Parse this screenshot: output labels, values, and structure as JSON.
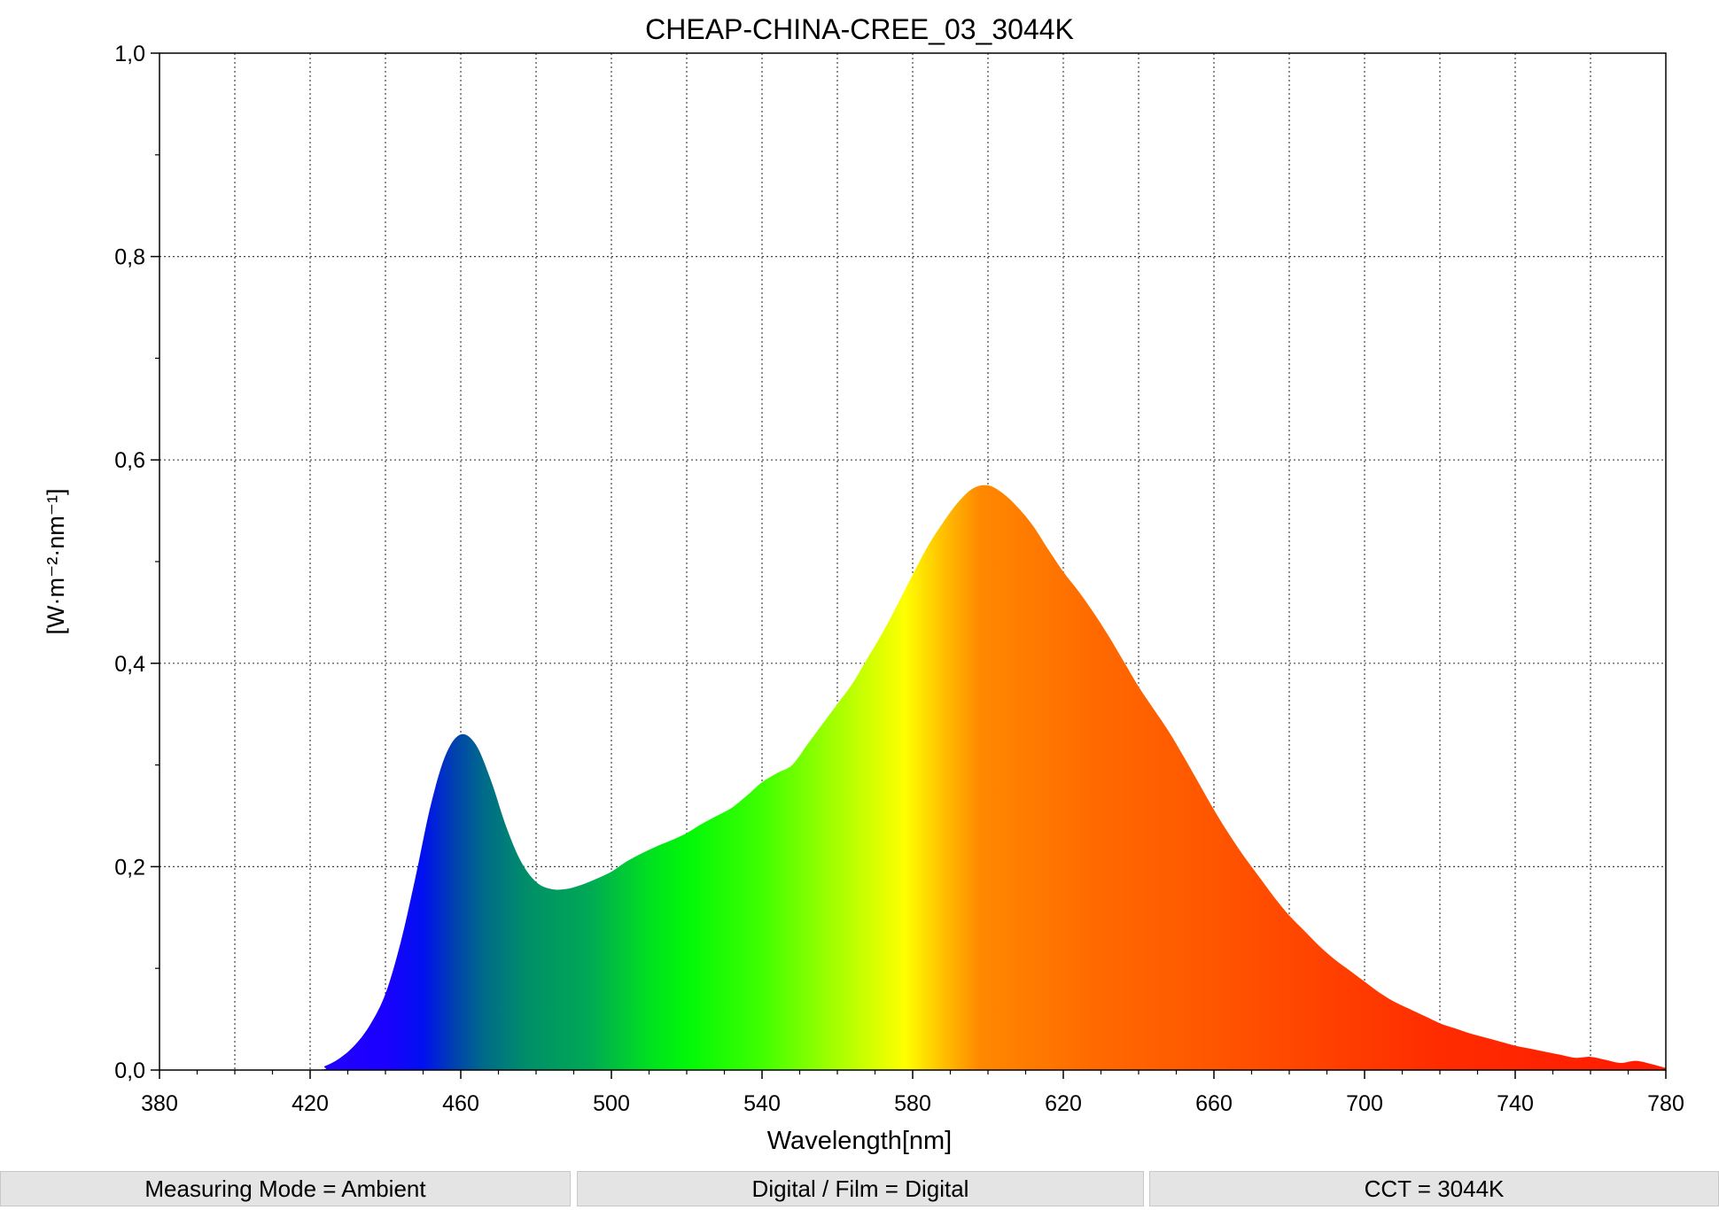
{
  "chart_data": {
    "type": "area",
    "title": "CHEAP-CHINA-CREE_03_3044K",
    "xlabel": "Wavelength[nm]",
    "ylabel": "[W·m⁻²·nm⁻¹]",
    "xlim": [
      380,
      780
    ],
    "ylim": [
      0.0,
      1.0
    ],
    "x_ticks": [
      "380",
      "420",
      "460",
      "500",
      "540",
      "580",
      "620",
      "660",
      "700",
      "740",
      "780"
    ],
    "y_ticks": [
      "0,0",
      "0,2",
      "0,4",
      "0,6",
      "0,8",
      "1,0"
    ],
    "grid": true,
    "fill": "visible-spectrum gradient",
    "x": [
      380,
      420,
      424,
      428,
      432,
      436,
      440,
      444,
      448,
      452,
      456,
      460,
      464,
      468,
      472,
      476,
      480,
      484,
      488,
      492,
      496,
      500,
      504,
      508,
      512,
      516,
      520,
      524,
      528,
      532,
      536,
      540,
      544,
      548,
      552,
      556,
      560,
      564,
      568,
      572,
      576,
      580,
      584,
      588,
      592,
      596,
      600,
      604,
      608,
      612,
      616,
      620,
      624,
      628,
      632,
      636,
      640,
      644,
      648,
      652,
      656,
      660,
      664,
      668,
      672,
      676,
      680,
      684,
      688,
      692,
      696,
      700,
      704,
      708,
      712,
      716,
      720,
      724,
      728,
      732,
      736,
      740,
      744,
      748,
      752,
      756,
      760,
      764,
      768,
      772,
      776,
      780
    ],
    "y": [
      0.0,
      0.0,
      0.004,
      0.012,
      0.025,
      0.045,
      0.075,
      0.125,
      0.19,
      0.26,
      0.31,
      0.33,
      0.32,
      0.285,
      0.24,
      0.205,
      0.185,
      0.178,
      0.178,
      0.182,
      0.188,
      0.195,
      0.205,
      0.213,
      0.22,
      0.226,
      0.233,
      0.242,
      0.25,
      0.258,
      0.27,
      0.283,
      0.292,
      0.3,
      0.32,
      0.34,
      0.36,
      0.38,
      0.405,
      0.43,
      0.458,
      0.487,
      0.515,
      0.538,
      0.558,
      0.572,
      0.575,
      0.567,
      0.553,
      0.535,
      0.512,
      0.49,
      0.471,
      0.45,
      0.427,
      0.402,
      0.377,
      0.355,
      0.333,
      0.308,
      0.282,
      0.256,
      0.232,
      0.21,
      0.19,
      0.17,
      0.152,
      0.137,
      0.122,
      0.109,
      0.098,
      0.087,
      0.076,
      0.067,
      0.06,
      0.053,
      0.046,
      0.041,
      0.036,
      0.032,
      0.028,
      0.024,
      0.021,
      0.018,
      0.015,
      0.012,
      0.013,
      0.01,
      0.007,
      0.009,
      0.006,
      0.002
    ]
  },
  "status_bar": [
    {
      "label": "Measuring Mode = Ambient"
    },
    {
      "label": "Digital / Film = Digital"
    },
    {
      "label": "CCT = 3044K"
    }
  ]
}
